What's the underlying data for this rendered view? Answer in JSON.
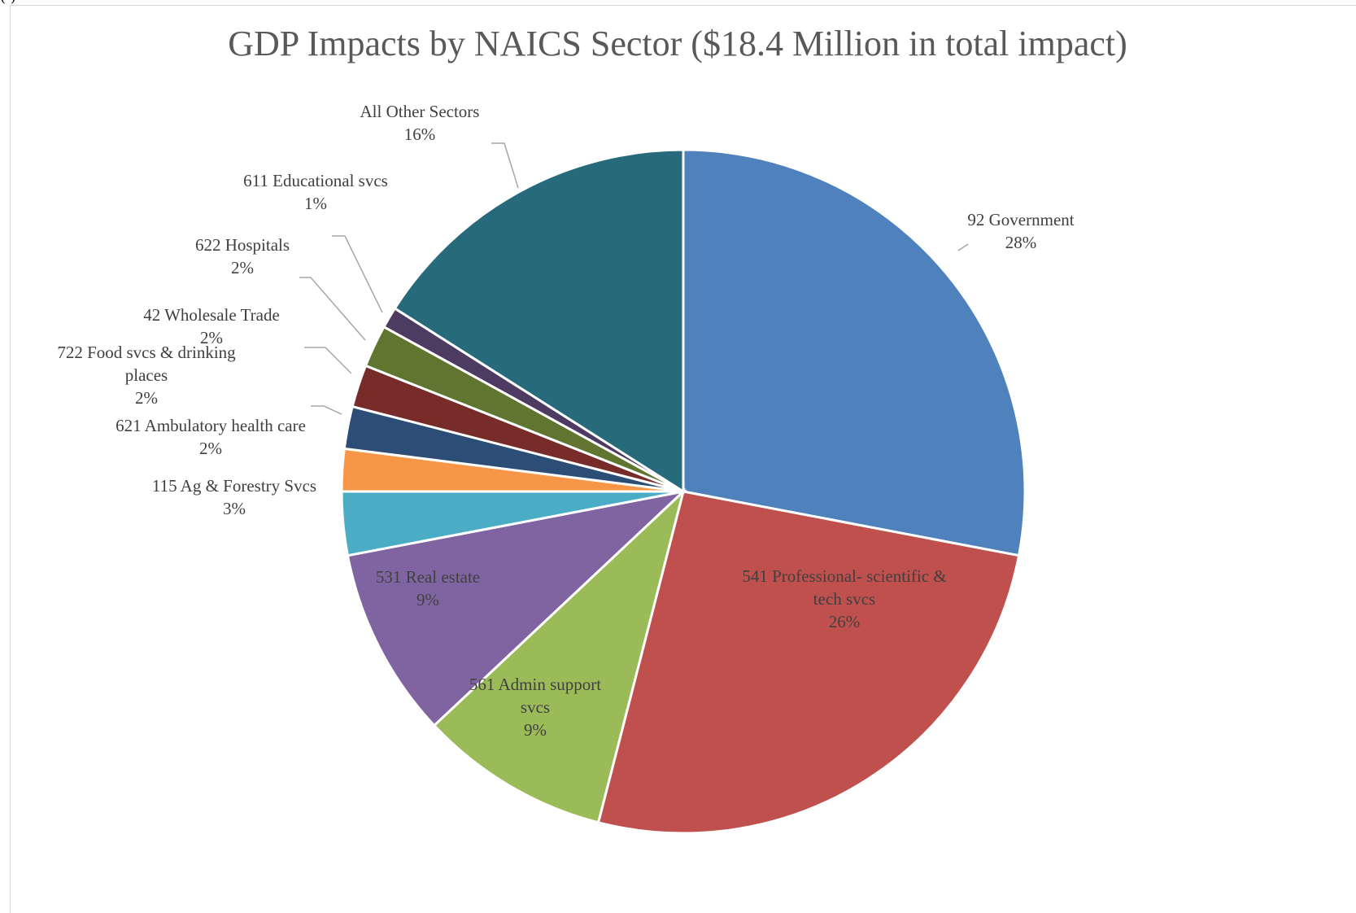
{
  "fragment_text": "(       )",
  "chart_data": {
    "type": "pie",
    "title": "GDP Impacts by NAICS Sector ($18.4 Million in total impact)",
    "slices": [
      {
        "label": "92 Government",
        "value": 28,
        "display": "28%",
        "color": "#4F81BD"
      },
      {
        "label": "541 Professional- scientific & tech svcs",
        "value": 26,
        "display": "26%",
        "color": "#C0504D"
      },
      {
        "label": "561 Admin support svcs",
        "value": 9,
        "display": "9%",
        "color": "#9BBB59"
      },
      {
        "label": "531 Real estate",
        "value": 9,
        "display": "9%",
        "color": "#8064A2"
      },
      {
        "label": "115 Ag & Forestry Svcs",
        "value": 3,
        "display": "3%",
        "color": "#4BACC6"
      },
      {
        "label": "621 Ambulatory health care",
        "value": 2,
        "display": "2%",
        "color": "#F79646"
      },
      {
        "label": "722 Food svcs & drinking places",
        "value": 2,
        "display": "2%",
        "color": "#2C4D75"
      },
      {
        "label": "42  Wholesale Trade",
        "value": 2,
        "display": "2%",
        "color": "#772C2A"
      },
      {
        "label": "622 Hospitals",
        "value": 2,
        "display": "2%",
        "color": "#5F7530"
      },
      {
        "label": "611 Educational svcs",
        "value": 1,
        "display": "1%",
        "color": "#4D3B62"
      },
      {
        "label": "All Other Sectors",
        "value": 16,
        "display": "16%",
        "color": "#276A7C"
      }
    ]
  }
}
